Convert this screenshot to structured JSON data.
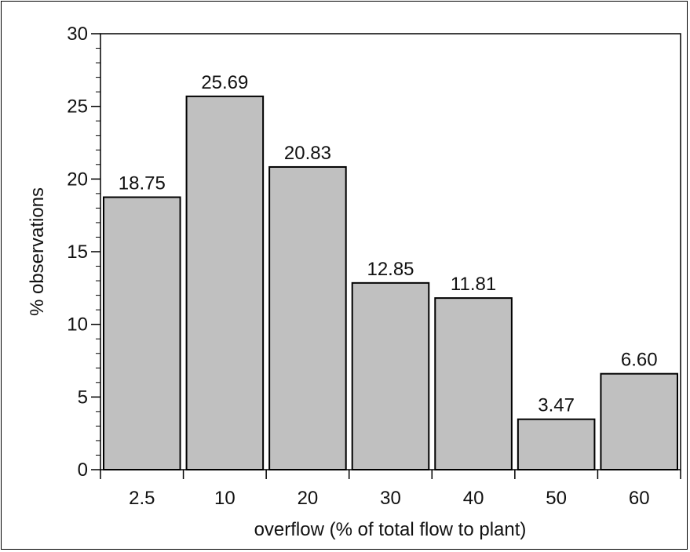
{
  "chart_data": {
    "type": "bar",
    "categories": [
      "2.5",
      "10",
      "20",
      "30",
      "40",
      "50",
      "60"
    ],
    "values": [
      18.75,
      25.69,
      20.83,
      12.85,
      11.81,
      3.47,
      6.6
    ],
    "data_labels": [
      "18.75",
      "25.69",
      "20.83",
      "12.85",
      "11.81",
      "3.47",
      "6.60"
    ],
    "xlabel": "overflow (% of total flow to plant)",
    "ylabel": "% observations",
    "ylim": [
      0,
      30
    ],
    "yticks": [
      0,
      5,
      10,
      15,
      20,
      25,
      30
    ],
    "grid": false,
    "bar_color": "#c0c0c0",
    "edge_color": "#000000"
  }
}
